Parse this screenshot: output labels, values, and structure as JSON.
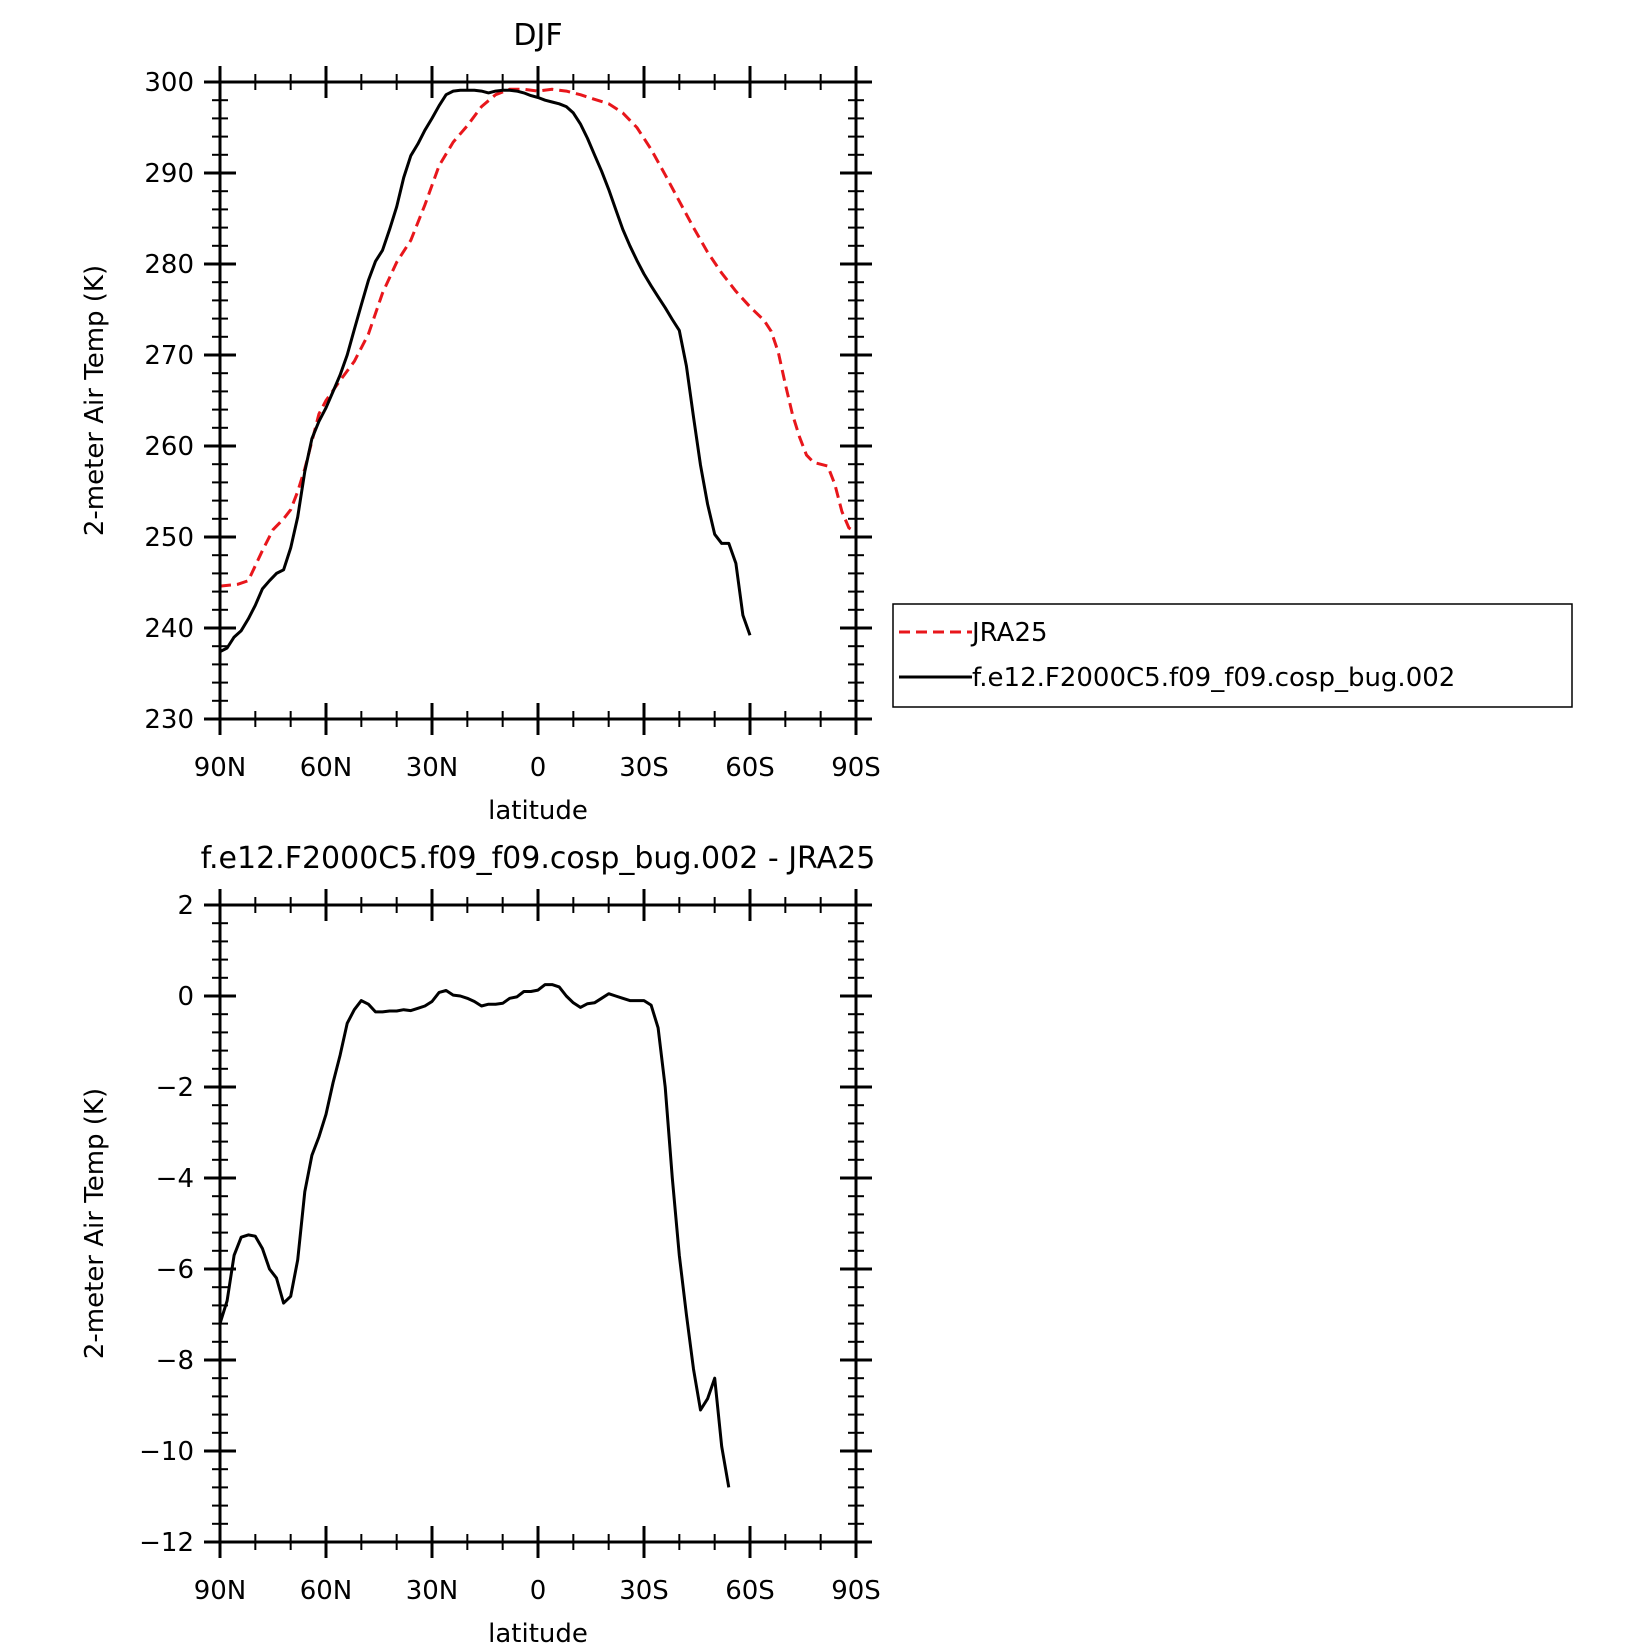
{
  "chart_data": [
    {
      "type": "line",
      "title": "DJF",
      "xlabel": "latitude",
      "ylabel": "2-meter Air Temp (K)",
      "xlim": [
        90,
        -90
      ],
      "ylim": [
        230,
        300
      ],
      "x_ticks": [
        {
          "value": 90,
          "label": "90N"
        },
        {
          "value": 60,
          "label": "60N"
        },
        {
          "value": 30,
          "label": "30N"
        },
        {
          "value": 0,
          "label": "0"
        },
        {
          "value": -30,
          "label": "30S"
        },
        {
          "value": -60,
          "label": "60S"
        },
        {
          "value": -90,
          "label": "90S"
        }
      ],
      "y_ticks": [
        230,
        240,
        250,
        260,
        270,
        280,
        290,
        300
      ],
      "legend_position": "right",
      "series": [
        {
          "name": "JRA25",
          "color": "#e8161b",
          "dash": "dashed",
          "points": [
            [
              90,
              244.6
            ],
            [
              85,
              244.8
            ],
            [
              82,
              245.2
            ],
            [
              78,
              248.5
            ],
            [
              75,
              250.8
            ],
            [
              72,
              252
            ],
            [
              70,
              253
            ],
            [
              68,
              255
            ],
            [
              66,
              257.5
            ],
            [
              64,
              260.5
            ],
            [
              62,
              263.5
            ],
            [
              60,
              265
            ],
            [
              56,
              267.2
            ],
            [
              52,
              269.3
            ],
            [
              48,
              272.3
            ],
            [
              44,
              276.8
            ],
            [
              40,
              280.2
            ],
            [
              36,
              282.6
            ],
            [
              32,
              286.5
            ],
            [
              28,
              290.8
            ],
            [
              24,
              293.4
            ],
            [
              20,
              295.2
            ],
            [
              16,
              297.3
            ],
            [
              12,
              298.6
            ],
            [
              8,
              299.2
            ],
            [
              4,
              299.2
            ],
            [
              0,
              299
            ],
            [
              -4,
              299.2
            ],
            [
              -8,
              299
            ],
            [
              -12,
              298.6
            ],
            [
              -16,
              298.1
            ],
            [
              -20,
              297.6
            ],
            [
              -24,
              296.6
            ],
            [
              -28,
              295
            ],
            [
              -32,
              292.6
            ],
            [
              -36,
              289.8
            ],
            [
              -40,
              286.9
            ],
            [
              -44,
              284
            ],
            [
              -48,
              281.3
            ],
            [
              -52,
              279
            ],
            [
              -56,
              277
            ],
            [
              -60,
              275.3
            ],
            [
              -64,
              273.8
            ],
            [
              -66,
              272.6
            ],
            [
              -68,
              270.3
            ],
            [
              -70,
              266.8
            ],
            [
              -72,
              263.5
            ],
            [
              -74,
              261
            ],
            [
              -76,
              259
            ],
            [
              -78,
              258.2
            ],
            [
              -82,
              257.8
            ],
            [
              -84,
              255.8
            ],
            [
              -86,
              252.8
            ],
            [
              -88,
              251
            ],
            [
              -90,
              250.5
            ]
          ]
        },
        {
          "name": "f.e12.F2000C5.f09_f09.cosp_bug.002",
          "color": "#000000",
          "dash": "solid",
          "points": [
            [
              90,
              237.4
            ],
            [
              88,
              237.8
            ],
            [
              86,
              239
            ],
            [
              84,
              239.7
            ],
            [
              82,
              241
            ],
            [
              80,
              242.5
            ],
            [
              78,
              244.3
            ],
            [
              76,
              245.2
            ],
            [
              74,
              246
            ],
            [
              72,
              246.4
            ],
            [
              70,
              248.8
            ],
            [
              68,
              252.2
            ],
            [
              66,
              257.2
            ],
            [
              64,
              260.8
            ],
            [
              62,
              262.7
            ],
            [
              60,
              264.2
            ],
            [
              58,
              266
            ],
            [
              56,
              267.8
            ],
            [
              54,
              270
            ],
            [
              52,
              272.8
            ],
            [
              50,
              275.5
            ],
            [
              48,
              278.2
            ],
            [
              46,
              280.3
            ],
            [
              44,
              281.5
            ],
            [
              42,
              283.8
            ],
            [
              40,
              286.3
            ],
            [
              38,
              289.5
            ],
            [
              36,
              291.9
            ],
            [
              34,
              293.2
            ],
            [
              32,
              294.7
            ],
            [
              30,
              296
            ],
            [
              28,
              297.4
            ],
            [
              26,
              298.6
            ],
            [
              24,
              299
            ],
            [
              22,
              299.1
            ],
            [
              20,
              299.1
            ],
            [
              18,
              299.1
            ],
            [
              16,
              299
            ],
            [
              14,
              298.8
            ],
            [
              12,
              299
            ],
            [
              10,
              299.1
            ],
            [
              8,
              299.1
            ],
            [
              6,
              299
            ],
            [
              4,
              298.8
            ],
            [
              2,
              298.5
            ],
            [
              0,
              298.3
            ],
            [
              -2,
              298
            ],
            [
              -4,
              297.8
            ],
            [
              -6,
              297.6
            ],
            [
              -8,
              297.3
            ],
            [
              -10,
              296.6
            ],
            [
              -12,
              295.4
            ],
            [
              -14,
              293.8
            ],
            [
              -16,
              292
            ],
            [
              -18,
              290.2
            ],
            [
              -20,
              288.2
            ],
            [
              -22,
              286
            ],
            [
              -24,
              283.8
            ],
            [
              -26,
              282
            ],
            [
              -28,
              280.4
            ],
            [
              -30,
              278.9
            ],
            [
              -32,
              277.6
            ],
            [
              -34,
              276.4
            ],
            [
              -36,
              275.2
            ],
            [
              -38,
              273.9
            ],
            [
              -40,
              272.7
            ],
            [
              -42,
              268.8
            ],
            [
              -44,
              263.2
            ],
            [
              -46,
              257.9
            ],
            [
              -48,
              253.6
            ],
            [
              -50,
              250.3
            ],
            [
              -52,
              249.3
            ],
            [
              -54,
              249.3
            ],
            [
              -56,
              247.1
            ],
            [
              -58,
              241.4
            ],
            [
              -60,
              239.2
            ]
          ]
        }
      ]
    },
    {
      "type": "line",
      "title": "f.e12.F2000C5.f09_f09.cosp_bug.002 - JRA25",
      "xlabel": "latitude",
      "ylabel": "2-meter Air Temp (K)",
      "xlim": [
        90,
        -90
      ],
      "ylim": [
        -12,
        2
      ],
      "x_ticks": [
        {
          "value": 90,
          "label": "90N"
        },
        {
          "value": 60,
          "label": "60N"
        },
        {
          "value": 30,
          "label": "30N"
        },
        {
          "value": 0,
          "label": "0"
        },
        {
          "value": -30,
          "label": "30S"
        },
        {
          "value": -60,
          "label": "60S"
        },
        {
          "value": -90,
          "label": "90S"
        }
      ],
      "y_ticks": [
        -12,
        -10,
        -8,
        -6,
        -4,
        -2,
        0,
        2
      ],
      "y_tick_labels": [
        "−12",
        "−10",
        "−8",
        "−6",
        "−4",
        "−2",
        "0",
        "2"
      ],
      "series": [
        {
          "color": "#000000",
          "dash": "solid",
          "points": [
            [
              90,
              -7.2
            ],
            [
              88,
              -6.7
            ],
            [
              86,
              -5.7
            ],
            [
              84,
              -5.3
            ],
            [
              82,
              -5.25
            ],
            [
              80,
              -5.28
            ],
            [
              78,
              -5.55
            ],
            [
              76,
              -6
            ],
            [
              74,
              -6.2
            ],
            [
              72,
              -6.75
            ],
            [
              70,
              -6.6
            ],
            [
              68,
              -5.8
            ],
            [
              66,
              -4.3
            ],
            [
              64,
              -3.5
            ],
            [
              62,
              -3.1
            ],
            [
              60,
              -2.6
            ],
            [
              58,
              -1.9
            ],
            [
              56,
              -1.3
            ],
            [
              54,
              -0.6
            ],
            [
              52,
              -0.3
            ],
            [
              50,
              -0.1
            ],
            [
              48,
              -0.18
            ],
            [
              46,
              -0.35
            ],
            [
              44,
              -0.35
            ],
            [
              42,
              -0.33
            ],
            [
              40,
              -0.33
            ],
            [
              38,
              -0.3
            ],
            [
              36,
              -0.32
            ],
            [
              34,
              -0.27
            ],
            [
              32,
              -0.22
            ],
            [
              30,
              -0.12
            ],
            [
              28,
              0.08
            ],
            [
              26,
              0.12
            ],
            [
              24,
              0.02
            ],
            [
              22,
              0
            ],
            [
              20,
              -0.05
            ],
            [
              18,
              -0.12
            ],
            [
              16,
              -0.22
            ],
            [
              14,
              -0.18
            ],
            [
              12,
              -0.18
            ],
            [
              10,
              -0.16
            ],
            [
              8,
              -0.05
            ],
            [
              6,
              -0.02
            ],
            [
              4,
              0.1
            ],
            [
              2,
              0.1
            ],
            [
              0,
              0.13
            ],
            [
              -2,
              0.25
            ],
            [
              -4,
              0.25
            ],
            [
              -6,
              0.2
            ],
            [
              -8,
              0
            ],
            [
              -10,
              -0.15
            ],
            [
              -12,
              -0.25
            ],
            [
              -14,
              -0.17
            ],
            [
              -16,
              -0.15
            ],
            [
              -18,
              -0.05
            ],
            [
              -20,
              0.05
            ],
            [
              -22,
              0
            ],
            [
              -24,
              -0.05
            ],
            [
              -26,
              -0.1
            ],
            [
              -28,
              -0.1
            ],
            [
              -30,
              -0.1
            ],
            [
              -32,
              -0.2
            ],
            [
              -34,
              -0.7
            ],
            [
              -36,
              -2
            ],
            [
              -38,
              -4
            ],
            [
              -40,
              -5.7
            ],
            [
              -42,
              -7
            ],
            [
              -44,
              -8.2
            ],
            [
              -46,
              -9.1
            ],
            [
              -48,
              -8.85
            ],
            [
              -50,
              -8.4
            ],
            [
              -52,
              -9.9
            ],
            [
              -54,
              -10.8
            ]
          ]
        }
      ]
    }
  ]
}
